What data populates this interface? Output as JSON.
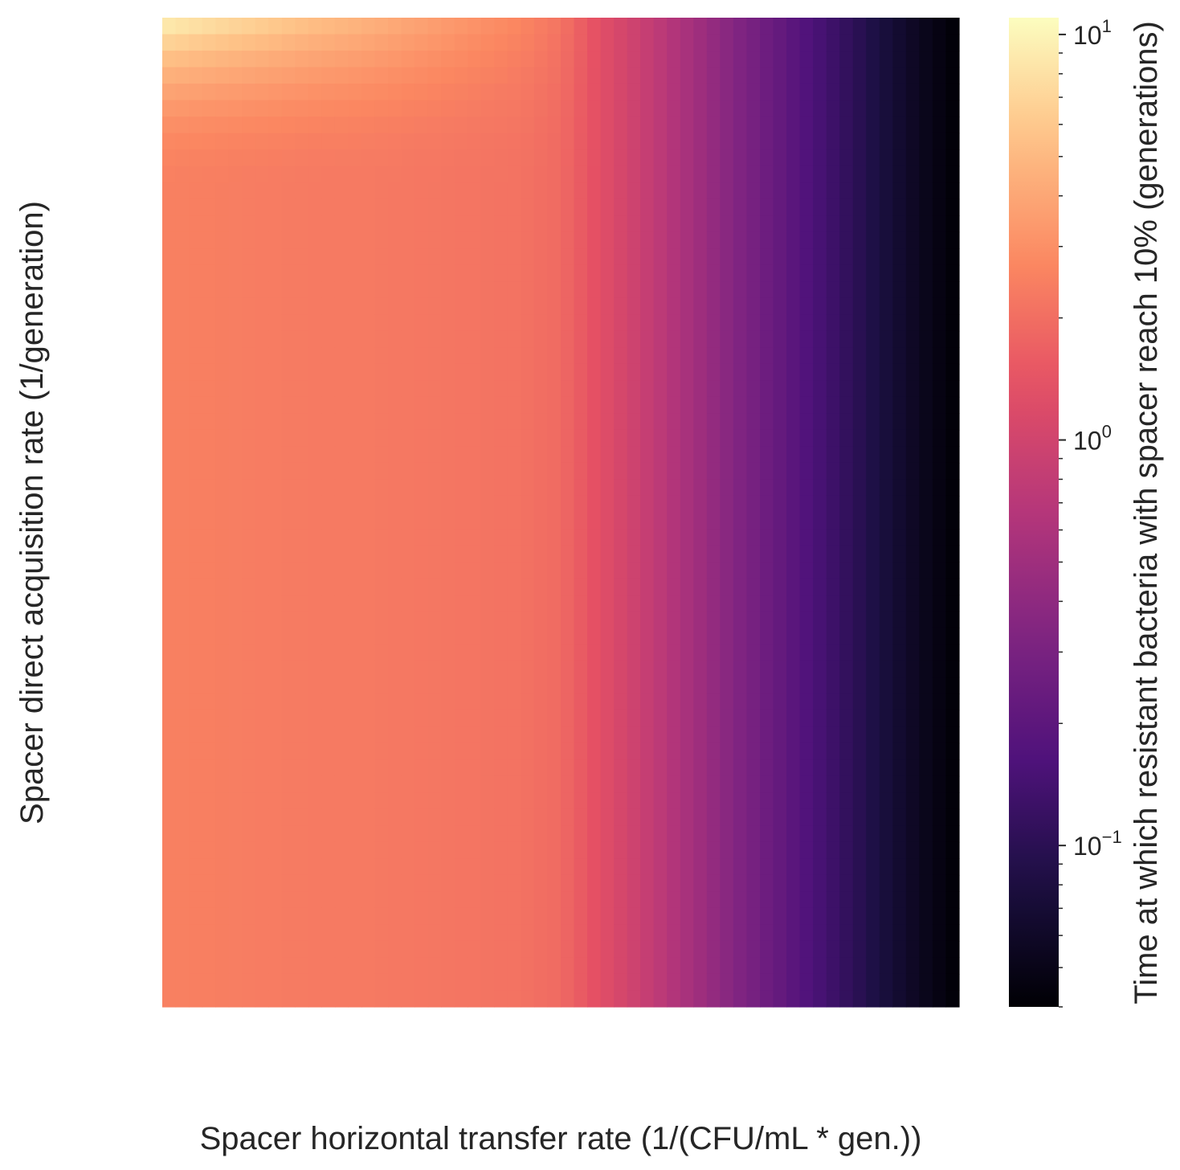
{
  "chart_data": {
    "type": "heatmap",
    "title": "",
    "xlabel": "Spacer horizontal transfer rate (1/(CFU/mL * gen.))",
    "ylabel": "Spacer direct acquisition rate (1/generation)",
    "colormap": "magma",
    "colorbar": {
      "label": "Time at which resistant bacteria with spacer reach 10% (generations)",
      "scale": "log",
      "range": [
        0.04,
        11
      ],
      "ticks": [
        {
          "value": 10,
          "base": "10",
          "exp": "1"
        },
        {
          "value": 1,
          "base": "10",
          "exp": "0"
        },
        {
          "value": 0.1,
          "base": "10",
          "exp": "−1"
        }
      ]
    },
    "grid": false,
    "x_tick_labels": [],
    "y_tick_labels": [],
    "values_by_column": [
      2.5,
      2.45,
      2.4,
      2.35,
      2.3,
      2.3,
      2.25,
      2.2,
      2.15,
      2.1,
      1.9,
      1.3,
      0.9,
      0.6,
      0.4,
      0.27,
      0.18,
      0.12,
      0.08,
      0.055,
      0.04
    ],
    "top_edge_boost": 4.0,
    "top_edge_extent_rows": 0.17
  }
}
